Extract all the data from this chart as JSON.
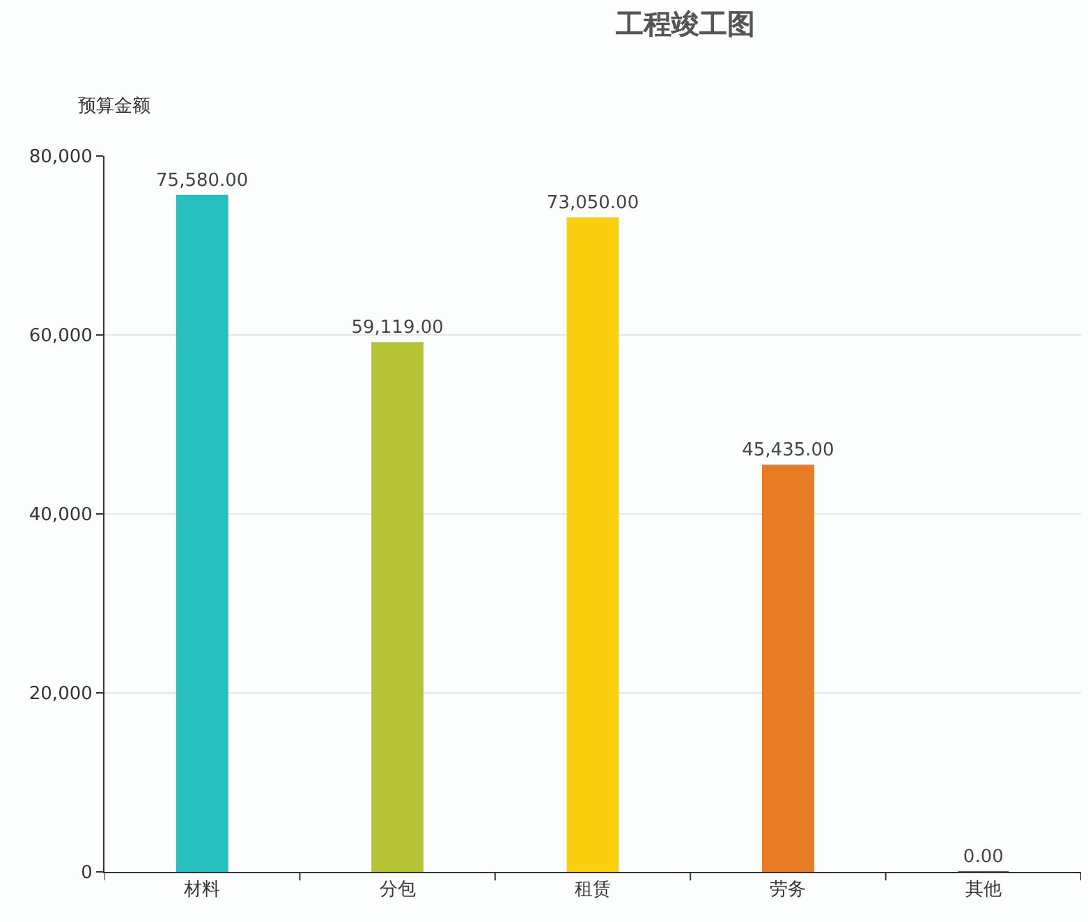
{
  "chart_data": {
    "type": "bar",
    "title": "工程竣工图",
    "ylabel": "预算金额",
    "categories": [
      "材料",
      "分包",
      "租赁",
      "劳务",
      "其他"
    ],
    "values": [
      75580,
      59119,
      73050,
      45435,
      0
    ],
    "colors": [
      "#26c0c0",
      "#b5c334",
      "#fcce10",
      "#e87c25",
      "#27727b"
    ],
    "value_labels": [
      "75,580.00",
      "59,119.00",
      "73,050.00",
      "45,435.00",
      "0.00"
    ],
    "ylim": [
      0,
      80000
    ],
    "yticks": [
      {
        "value": 0,
        "label": "0"
      },
      {
        "value": 20000,
        "label": "20,000"
      },
      {
        "value": 40000,
        "label": "40,000"
      },
      {
        "value": 60000,
        "label": "60,000"
      },
      {
        "value": 80000,
        "label": "80,000"
      }
    ],
    "grid": "y"
  }
}
